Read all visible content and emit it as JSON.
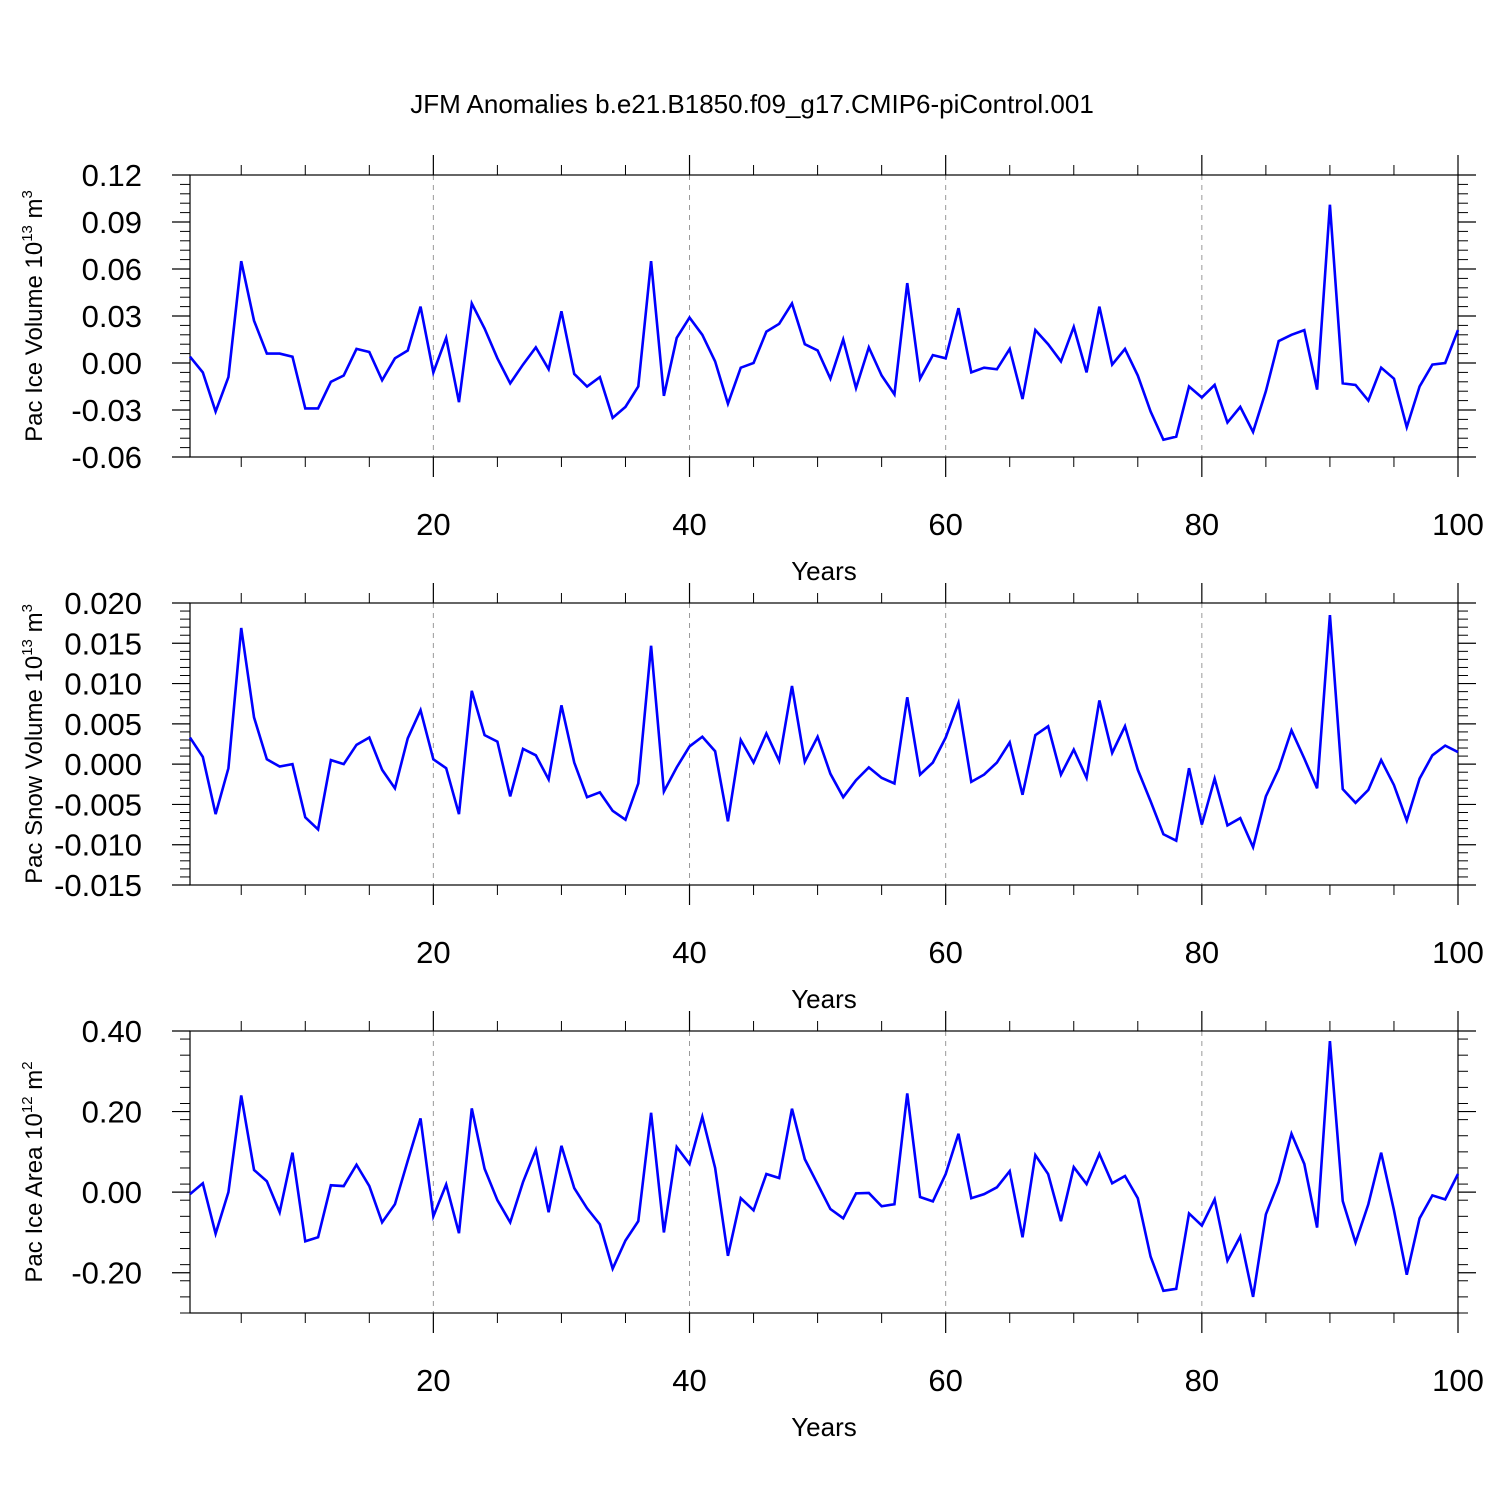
{
  "title": "JFM Anomalies b.e21.B1850.f09_g17.CMIP6-piControl.001",
  "line_color": "#0000ff",
  "chart_data": [
    {
      "type": "line",
      "ylabel": {
        "pre": "Pac Ice Volume 10",
        "sup": "13",
        "mid": " m",
        "sup2": "3"
      },
      "xlabel": "Years",
      "xlim": [
        1,
        100
      ],
      "ylim": [
        -0.06,
        0.12
      ],
      "yticks": [
        "-0.06",
        "-0.03",
        "0.00",
        "0.03",
        "0.06",
        "0.09",
        "0.12"
      ],
      "xticks": [
        "20",
        "40",
        "60",
        "80",
        "100"
      ],
      "grid_x": [
        20,
        40,
        60,
        80
      ],
      "series": [
        {
          "values": [
            0.004,
            -0.006,
            -0.031,
            -0.009,
            0.065,
            0.027,
            0.006,
            0.006,
            0.004,
            -0.029,
            -0.029,
            -0.012,
            -0.008,
            0.009,
            0.007,
            -0.011,
            0.003,
            0.008,
            0.036,
            -0.006,
            0.016,
            -0.025,
            0.038,
            0.022,
            0.003,
            -0.013,
            -0.001,
            0.01,
            -0.004,
            0.033,
            -0.007,
            -0.015,
            -0.009,
            -0.035,
            -0.028,
            -0.015,
            0.065,
            -0.021,
            0.016,
            0.029,
            0.018,
            0.001,
            -0.026,
            -0.003,
            0.0,
            0.02,
            0.025,
            0.038,
            0.012,
            0.008,
            -0.01,
            0.015,
            -0.016,
            0.01,
            -0.008,
            -0.02,
            0.051,
            -0.01,
            0.005,
            0.003,
            0.035,
            -0.006,
            -0.003,
            -0.004,
            0.009,
            -0.023,
            0.021,
            0.012,
            0.001,
            0.023,
            -0.006,
            0.036,
            -0.001,
            0.009,
            -0.008,
            -0.031,
            -0.049,
            -0.047,
            -0.015,
            -0.022,
            -0.014,
            -0.038,
            -0.028,
            -0.044,
            -0.018,
            0.014,
            0.018,
            0.021,
            -0.017,
            0.101,
            -0.013,
            -0.014,
            -0.024,
            -0.003,
            -0.01,
            -0.041,
            -0.015,
            -0.001,
            0.0,
            0.021
          ]
        }
      ]
    },
    {
      "type": "line",
      "ylabel": {
        "pre": "Pac Snow Volume 10",
        "sup": "13",
        "mid": " m",
        "sup2": "3"
      },
      "xlabel": "Years",
      "xlim": [
        1,
        100
      ],
      "ylim": [
        -0.015,
        0.02
      ],
      "yticks": [
        "-0.015",
        "-0.010",
        "-0.005",
        "0.000",
        "0.005",
        "0.010",
        "0.015",
        "0.020"
      ],
      "xticks": [
        "20",
        "40",
        "60",
        "80",
        "100"
      ],
      "grid_x": [
        20,
        40,
        60,
        80
      ],
      "series": [
        {
          "values": [
            0.0033,
            0.0009,
            -0.0062,
            -0.0005,
            0.0169,
            0.0058,
            0.0006,
            -0.0003,
            0.0,
            -0.0066,
            -0.0081,
            0.0005,
            0.0,
            0.0024,
            0.0033,
            -0.0007,
            -0.003,
            0.0032,
            0.0067,
            0.0006,
            -0.0005,
            -0.0062,
            0.0091,
            0.0036,
            0.0028,
            -0.004,
            0.0019,
            0.0011,
            -0.0019,
            0.0073,
            0.0002,
            -0.0041,
            -0.0035,
            -0.0058,
            -0.0069,
            -0.0024,
            0.0147,
            -0.0034,
            -0.0004,
            0.0022,
            0.0034,
            0.0016,
            -0.0071,
            0.003,
            0.0002,
            0.0038,
            0.0004,
            0.0097,
            0.0003,
            0.0034,
            -0.0012,
            -0.0041,
            -0.002,
            -0.0004,
            -0.0017,
            -0.0024,
            0.0083,
            -0.0013,
            0.0002,
            0.0033,
            0.0076,
            -0.0022,
            -0.0013,
            0.0002,
            0.0027,
            -0.0038,
            0.0036,
            0.0047,
            -0.0013,
            0.0018,
            -0.0017,
            0.0079,
            0.0014,
            0.0047,
            -0.0007,
            -0.0046,
            -0.0087,
            -0.0095,
            -0.0005,
            -0.0075,
            -0.0018,
            -0.0076,
            -0.0067,
            -0.0103,
            -0.004,
            -0.0006,
            0.0042,
            0.0007,
            -0.003,
            0.0185,
            -0.0031,
            -0.0048,
            -0.0032,
            0.0005,
            -0.0026,
            -0.007,
            -0.0018,
            0.0011,
            0.0023,
            0.0015
          ]
        }
      ]
    },
    {
      "type": "line",
      "ylabel": {
        "pre": "Pac Ice Area 10",
        "sup": "12",
        "mid": " m",
        "sup2": "2"
      },
      "xlabel": "Years",
      "xlim": [
        1,
        100
      ],
      "ylim": [
        -0.3,
        0.4
      ],
      "yticks": [
        "-0.20",
        "0.00",
        "0.20",
        "0.40"
      ],
      "xticks": [
        "20",
        "40",
        "60",
        "80",
        "100"
      ],
      "grid_x": [
        20,
        40,
        60,
        80
      ],
      "series": [
        {
          "values": [
            -0.005,
            0.022,
            -0.103,
            0.0,
            0.24,
            0.055,
            0.027,
            -0.05,
            0.098,
            -0.122,
            -0.112,
            0.017,
            0.015,
            0.068,
            0.015,
            -0.075,
            -0.03,
            0.078,
            0.183,
            -0.06,
            0.019,
            -0.102,
            0.208,
            0.058,
            -0.02,
            -0.075,
            0.025,
            0.105,
            -0.05,
            0.115,
            0.01,
            -0.04,
            -0.08,
            -0.19,
            -0.12,
            -0.072,
            0.197,
            -0.1,
            0.112,
            0.07,
            0.187,
            0.06,
            -0.158,
            -0.015,
            -0.045,
            0.045,
            0.035,
            0.207,
            0.082,
            0.02,
            -0.042,
            -0.065,
            -0.003,
            -0.002,
            -0.035,
            -0.03,
            0.245,
            -0.012,
            -0.023,
            0.045,
            0.145,
            -0.015,
            -0.005,
            0.012,
            0.052,
            -0.112,
            0.092,
            0.045,
            -0.072,
            0.062,
            0.02,
            0.095,
            0.022,
            0.04,
            -0.015,
            -0.16,
            -0.245,
            -0.24,
            -0.053,
            -0.083,
            -0.018,
            -0.17,
            -0.11,
            -0.26,
            -0.055,
            0.025,
            0.145,
            0.07,
            -0.088,
            0.375,
            -0.022,
            -0.125,
            -0.03,
            0.098,
            -0.045,
            -0.205,
            -0.065,
            -0.008,
            -0.018,
            0.045
          ]
        }
      ]
    }
  ]
}
